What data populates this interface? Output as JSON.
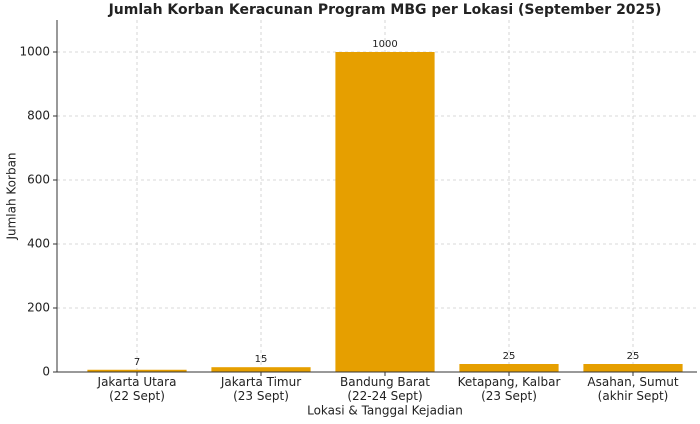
{
  "chart_data": {
    "type": "bar",
    "title": "Jumlah Korban Keracunan Program MBG per Lokasi (September 2025)",
    "x_label": "Lokasi & Tanggal Kejadian",
    "y_label": "Jumlah Korban",
    "categories": [
      [
        "Jakarta Utara",
        "(22 Sept)"
      ],
      [
        "Jakarta Timur",
        "(23 Sept)"
      ],
      [
        "Bandung Barat",
        "(22-24 Sept)"
      ],
      [
        "Ketapang, Kalbar",
        "(23 Sept)"
      ],
      [
        "Asahan, Sumut",
        "(akhir Sept)"
      ]
    ],
    "values": [
      7,
      15,
      1000,
      25,
      25
    ],
    "color": "#e69f00",
    "ylim": [
      0,
      1100
    ],
    "yticks": [
      0,
      200,
      400,
      600,
      800,
      1000
    ],
    "grid": true
  }
}
